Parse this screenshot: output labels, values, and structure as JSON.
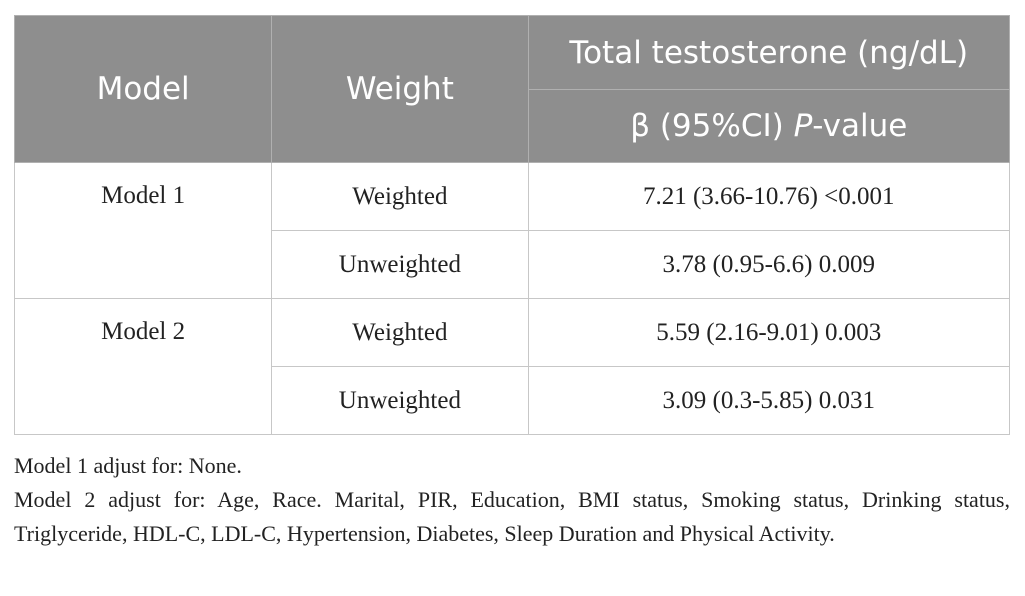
{
  "table": {
    "headers": {
      "model": "Model",
      "weight": "Weight",
      "outcome": "Total testosterone (ng/dL)",
      "stat_prefix": "β (95%CI) ",
      "stat_italic": "P",
      "stat_suffix": "-value"
    },
    "rows": [
      {
        "model": "Model 1",
        "weighted_label": "Weighted",
        "weighted_value": "7.21 (3.66-10.76) <0.001",
        "unweighted_label": "Unweighted",
        "unweighted_value": "3.78 (0.95-6.6) 0.009"
      },
      {
        "model": "Model 2",
        "weighted_label": "Weighted",
        "weighted_value": "5.59 (2.16-9.01) 0.003",
        "unweighted_label": "Unweighted",
        "unweighted_value": "3.09 (0.3-5.85) 0.031"
      }
    ]
  },
  "notes": [
    "Model 1 adjust for: None.",
    "Model 2 adjust for: Age, Race. Marital, PIR, Education, BMI status, Smoking status, Drinking status, Triglyceride, HDL-C, LDL-C, Hypertension, Diabetes, Sleep Duration and Physical Activity."
  ]
}
